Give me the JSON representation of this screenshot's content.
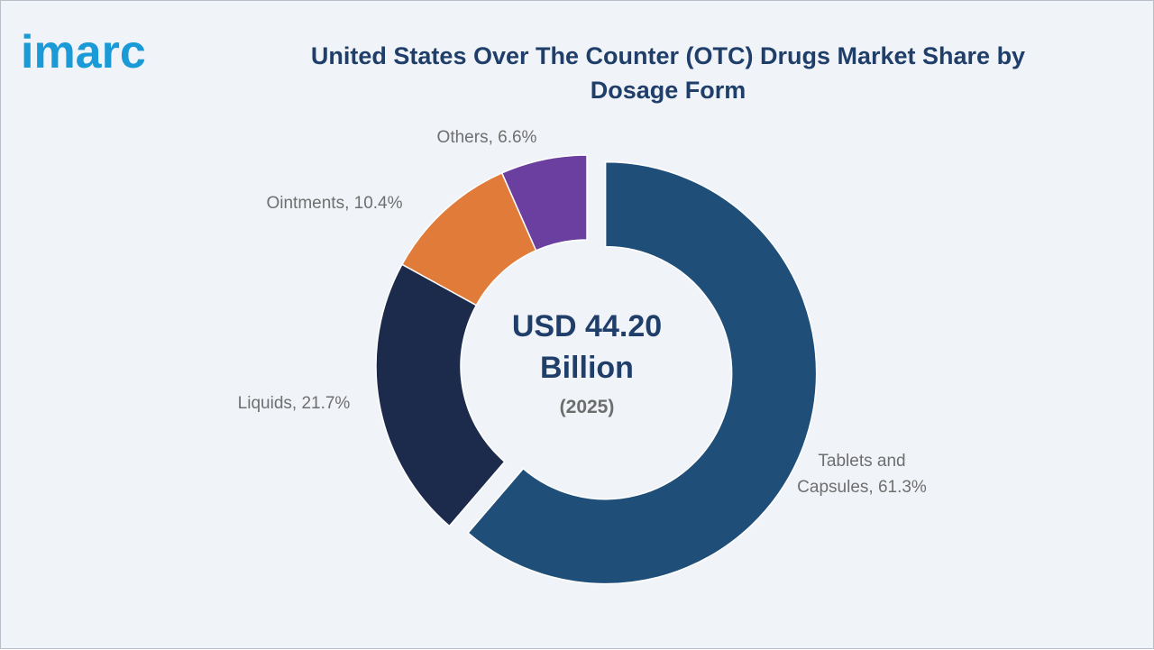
{
  "header": {
    "title_line1": "United States Over The Counter (OTC) Drugs Market Share by",
    "title_line2": "Dosage Form",
    "logo_text": "imarc"
  },
  "center": {
    "value_line1": "USD 44.20",
    "value_line2": "Billion",
    "year": "(2025)"
  },
  "chart_data": {
    "type": "pie",
    "title": "United States Over The Counter (OTC) Drugs Market Share by Dosage Form",
    "donut": true,
    "series": [
      {
        "name": "Tablets and Capsules",
        "value": 61.3,
        "label_lines": [
          "Tablets and",
          "Capsules, 61.3%"
        ],
        "color": "#1f4e79",
        "exploded": true
      },
      {
        "name": "Liquids",
        "value": 21.7,
        "label_lines": [
          "Liquids, 21.7%"
        ],
        "color": "#1c2a4c",
        "exploded": false
      },
      {
        "name": "Ointments",
        "value": 10.4,
        "label_lines": [
          "Ointments, 10.4%"
        ],
        "color": "#e07b39",
        "exploded": false
      },
      {
        "name": "Others",
        "value": 6.6,
        "label_lines": [
          "Others, 6.6%"
        ],
        "color": "#6b3fa0",
        "exploded": false
      }
    ],
    "center_text": [
      "USD 44.20",
      "Billion",
      "(2025)"
    ]
  },
  "colors": {
    "background": "#f0f3f8",
    "title": "#1f3f6a",
    "logo": "#1a9ad6"
  },
  "icons": {
    "logo": "imarc-logo"
  }
}
